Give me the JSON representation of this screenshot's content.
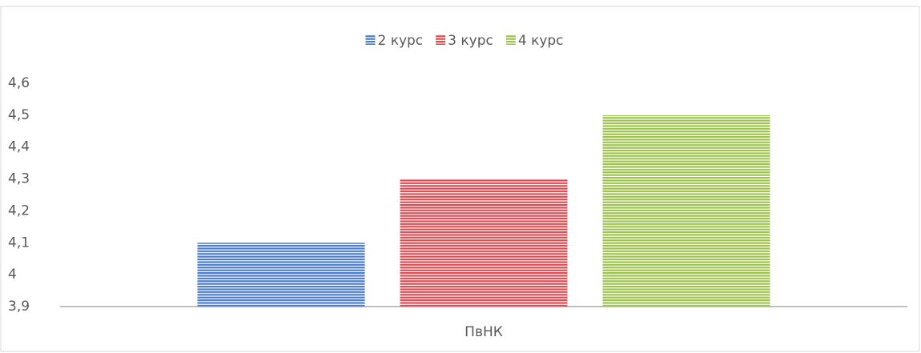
{
  "chart_data": {
    "type": "bar",
    "categories": [
      "ПвНК"
    ],
    "series": [
      {
        "name": "2 курс",
        "color": "#4a7bd0",
        "values": [
          4.1
        ]
      },
      {
        "name": "3 курс",
        "color": "#e0494f",
        "values": [
          4.3
        ]
      },
      {
        "name": "4 курс",
        "color": "#9dc34a",
        "values": [
          4.5
        ]
      }
    ],
    "ylim": [
      3.9,
      4.6
    ],
    "yticks": [
      {
        "value": 3.9,
        "label": "3,9"
      },
      4,
      {
        "value": 4.1,
        "label": "4,1"
      },
      {
        "value": 4.2,
        "label": "4,2"
      },
      {
        "value": 4.3,
        "label": "4,3"
      },
      {
        "value": 4.4,
        "label": "4,4"
      },
      {
        "value": 4.5,
        "label": "4,5"
      },
      {
        "value": 4.6,
        "label": "4,6"
      }
    ],
    "legend": "top",
    "grid": false
  }
}
